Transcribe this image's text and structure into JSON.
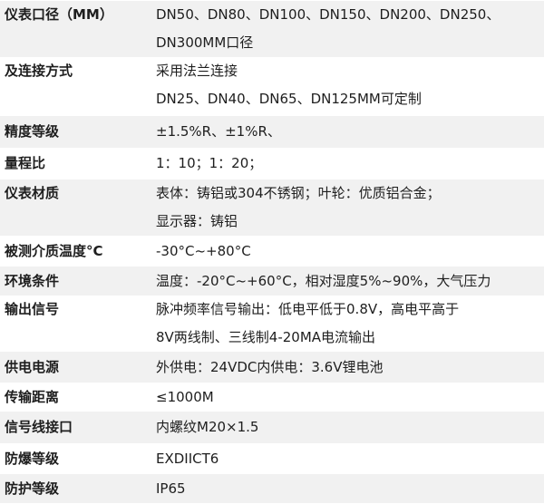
{
  "specs": [
    {
      "label": "仪表口径（MM）",
      "lines": [
        "DN50、DN80、DN100、DN150、DN200、DN250、",
        "DN300MM口径"
      ]
    },
    {
      "label": "及连接方式",
      "lines": [
        "采用法兰连接",
        "DN25、DN40、DN65、DN125MM可定制"
      ]
    },
    {
      "label": "精度等级",
      "lines": [
        "±1.5%R、±1%R、"
      ]
    },
    {
      "label": "量程比",
      "lines": [
        "1：10；1：20；"
      ]
    },
    {
      "label": "仪表材质",
      "lines": [
        "表体：铸铝或304不锈钢；叶轮：优质铝合金；",
        "显示器：铸铝"
      ]
    },
    {
      "label": "被测介质温度°C",
      "lines": [
        "-30°C~+80°C"
      ]
    },
    {
      "label": "环境条件",
      "lines": [
        "温度：-20°C~+60°C，相对湿度5%~90%，大气压力"
      ]
    },
    {
      "label": "输出信号",
      "lines": [
        "脉冲频率信号输出：低电平低于0.8V，高电平高于",
        "8V两线制、三线制4-20MA电流输出"
      ]
    },
    {
      "label": "供电电源",
      "lines": [
        "外供电：24VDC内供电：3.6V锂电池"
      ]
    },
    {
      "label": "传输距离",
      "lines": [
        "≤1000M"
      ]
    },
    {
      "label": "信号线接口",
      "lines": [
        "内螺纹M20×1.5"
      ]
    },
    {
      "label": "防爆等级",
      "lines": [
        "EXDIICT6"
      ]
    },
    {
      "label": "防护等级",
      "lines": [
        "IP65"
      ]
    }
  ],
  "colors": {
    "stripe": "#f1f1f1",
    "text": "#1e1e1e"
  }
}
